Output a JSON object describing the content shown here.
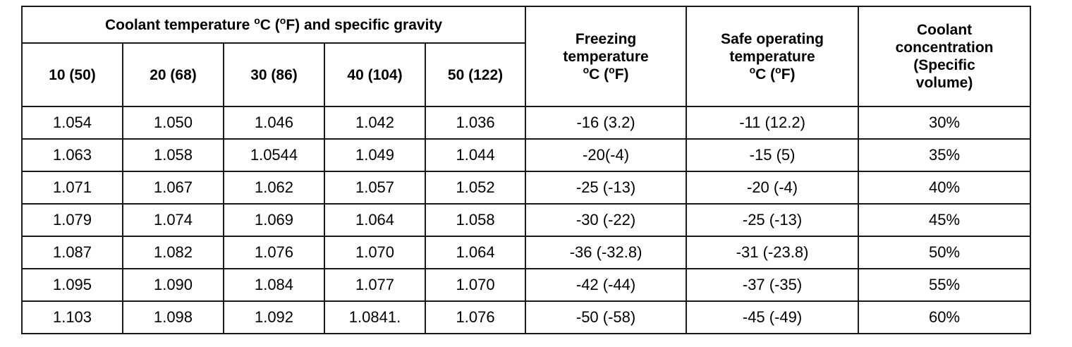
{
  "table": {
    "group_header": {
      "pre": "Coolant temperature ",
      "sup1": "o",
      "mid": "C (",
      "sup2": "o",
      "post": "F) and specific gravity"
    },
    "temp_columns": [
      "10 (50)",
      "20 (68)",
      "30 (86)",
      "40 (104)",
      "50 (122)"
    ],
    "freezing_header": {
      "line1": "Freezing",
      "line2": "temperature",
      "sup1": "o",
      "mid": "C (",
      "sup2": "o",
      "post": "F)"
    },
    "safe_header": {
      "line1": "Safe operating",
      "line2": "temperature",
      "sup1": "o",
      "mid": "C (",
      "sup2": "o",
      "post": "F)"
    },
    "concentration_header": {
      "line1": "Coolant",
      "line2": "concentration",
      "line3": "(Specific",
      "line4": "volume)"
    },
    "rows": [
      {
        "sg": [
          "1.054",
          "1.050",
          "1.046",
          "1.042",
          "1.036"
        ],
        "freezing": "-16 (3.2)",
        "safe": "-11 (12.2)",
        "concentration": "30%"
      },
      {
        "sg": [
          "1.063",
          "1.058",
          "1.0544",
          "1.049",
          "1.044"
        ],
        "freezing": "-20(-4)",
        "safe": "-15 (5)",
        "concentration": "35%"
      },
      {
        "sg": [
          "1.071",
          "1.067",
          "1.062",
          "1.057",
          "1.052"
        ],
        "freezing": "-25 (-13)",
        "safe": "-20 (-4)",
        "concentration": "40%"
      },
      {
        "sg": [
          "1.079",
          "1.074",
          "1.069",
          "1.064",
          "1.058"
        ],
        "freezing": "-30 (-22)",
        "safe": "-25 (-13)",
        "concentration": "45%"
      },
      {
        "sg": [
          "1.087",
          "1.082",
          "1.076",
          "1.070",
          "1.064"
        ],
        "freezing": "-36 (-32.8)",
        "safe": "-31 (-23.8)",
        "concentration": "50%"
      },
      {
        "sg": [
          "1.095",
          "1.090",
          "1.084",
          "1.077",
          "1.070"
        ],
        "freezing": "-42 (-44)",
        "safe": "-37 (-35)",
        "concentration": "55%"
      },
      {
        "sg": [
          "1.103",
          "1.098",
          "1.092",
          "1.0841.",
          "1.076"
        ],
        "freezing": "-50 (-58)",
        "safe": "-45 (-49)",
        "concentration": "60%"
      }
    ]
  }
}
